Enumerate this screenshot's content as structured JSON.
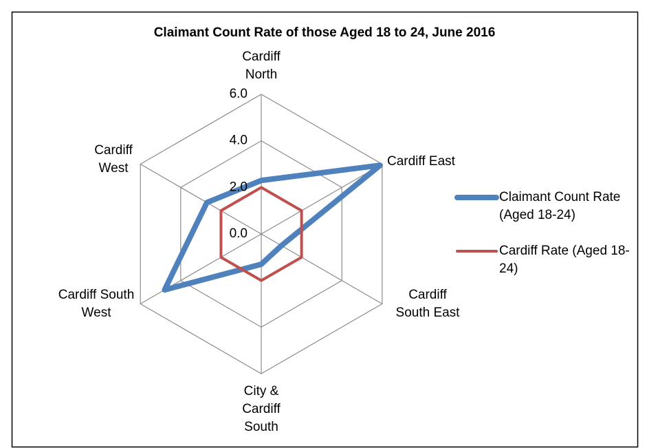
{
  "chart_data": {
    "type": "radar",
    "title": "Claimant Count Rate of those Aged 18 to 24, June 2016",
    "categories": [
      "Cardiff North",
      "Cardiff East",
      "Cardiff South East",
      "City & Cardiff South",
      "Cardiff South West",
      "Cardiff West"
    ],
    "series": [
      {
        "name": "Claimant Count Rate (Aged 18-24)",
        "color": "#4f81bd",
        "values": [
          2.3,
          5.9,
          1.0,
          1.3,
          4.8,
          2.7
        ]
      },
      {
        "name": "Cardiff Rate (Aged 18-24)",
        "color": "#c0504d",
        "values": [
          2.0,
          2.0,
          2.0,
          2.0,
          2.0,
          2.0
        ]
      }
    ],
    "ylim": [
      0,
      6
    ],
    "yticks": [
      {
        "value": 0,
        "label": "0.0"
      },
      {
        "value": 2,
        "label": "2.0"
      },
      {
        "value": 4,
        "label": "4.0"
      },
      {
        "value": 6,
        "label": "6.0"
      }
    ],
    "grid": true,
    "legend": "right"
  }
}
